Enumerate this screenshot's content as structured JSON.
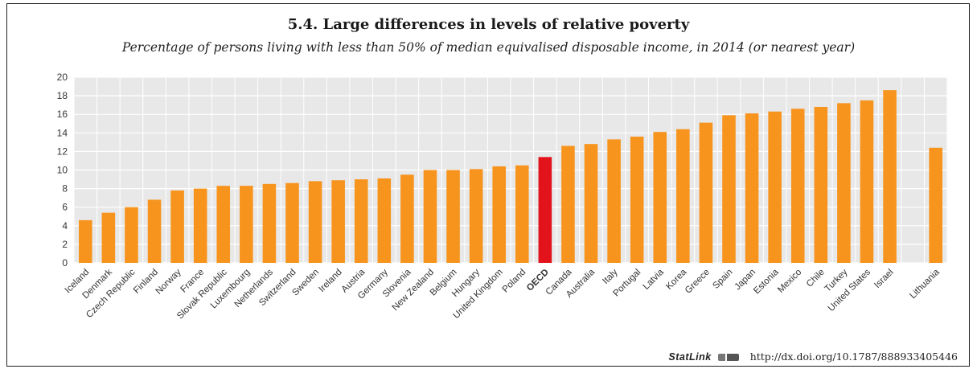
{
  "chart_data": {
    "type": "bar",
    "title": "5.4.  Large differences in levels of relative poverty",
    "subtitle": "Percentage of persons living with less than 50% of median equivalised disposable income, in 2014 (or nearest year)",
    "ylim": [
      0,
      20
    ],
    "yticks": [
      0,
      2,
      4,
      6,
      8,
      10,
      12,
      14,
      16,
      18,
      20
    ],
    "grid": true,
    "categories": [
      "Iceland",
      "Denmark",
      "Czech Republic",
      "Finland",
      "Norway",
      "France",
      "Slovak Republic",
      "Luxembourg",
      "Netherlands",
      "Switzerland",
      "Sweden",
      "Ireland",
      "Austria",
      "Germany",
      "Slovenia",
      "New Zealand",
      "Belgium",
      "Hungary",
      "United Kingdom",
      "Poland",
      "OECD",
      "Canada",
      "Australia",
      "Italy",
      "Portugal",
      "Latvia",
      "Korea",
      "Greece",
      "Spain",
      "Japan",
      "Estonia",
      "Mexico",
      "Chile",
      "Turkey",
      "United States",
      "Israel",
      "Lithuania"
    ],
    "values": [
      4.6,
      5.4,
      6.0,
      6.8,
      7.8,
      8.0,
      8.3,
      8.3,
      8.5,
      8.6,
      8.8,
      8.9,
      9.0,
      9.1,
      9.5,
      10.0,
      10.0,
      10.1,
      10.4,
      10.5,
      11.4,
      12.6,
      12.8,
      13.3,
      13.6,
      14.1,
      14.4,
      15.1,
      15.9,
      16.1,
      16.3,
      16.6,
      16.8,
      17.2,
      17.5,
      18.6,
      12.4
    ],
    "highlight": "OECD",
    "colors": {
      "bar": "#f7941d",
      "highlight": "#e3131b",
      "plot_bg": "#e8e8e8",
      "grid": "#ffffff"
    }
  },
  "statlink": {
    "brand": "StatLink",
    "url": "http://dx.doi.org/10.1787/888933405446"
  }
}
